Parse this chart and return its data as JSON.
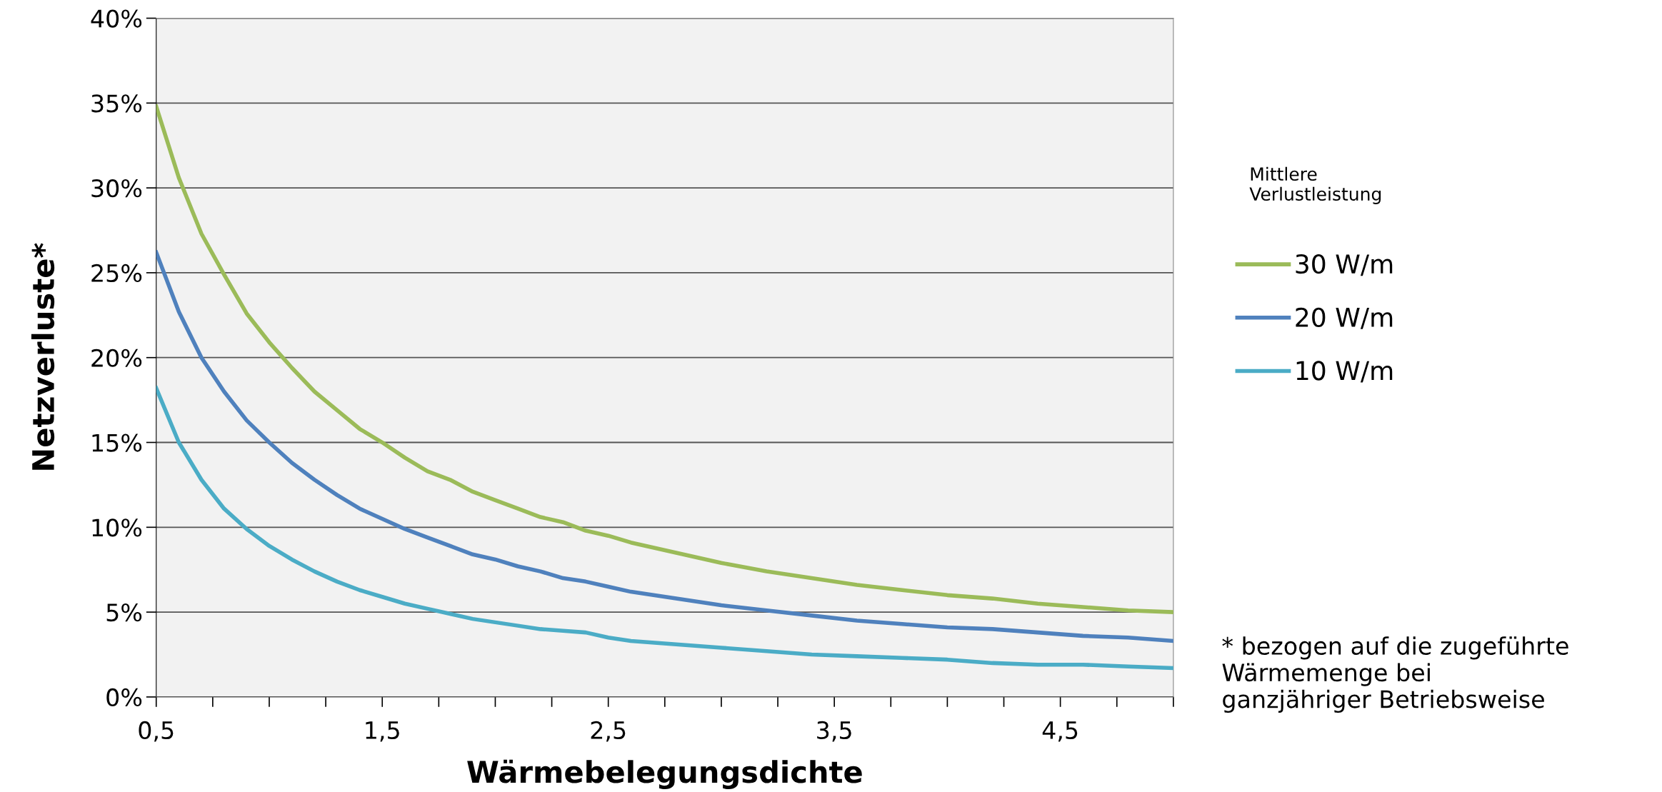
{
  "chart_data": {
    "type": "line",
    "xlabel": "Wärmebelegungsdichte",
    "ylabel": "Netzverluste*",
    "legend_title": "Mittlere\nVerlustleistung",
    "annotations": [
      "* bezogen auf die zugeführte\nWärmemenge bei\nganzjähriger Betriebsweise"
    ],
    "x": [
      0.5,
      0.6,
      0.7,
      0.8,
      0.9,
      1.0,
      1.1,
      1.2,
      1.3,
      1.4,
      1.5,
      1.6,
      1.7,
      1.8,
      1.9,
      2.0,
      2.1,
      2.2,
      2.3,
      2.4,
      2.5,
      2.6,
      2.8,
      3.0,
      3.2,
      3.4,
      3.6,
      3.8,
      4.0,
      4.2,
      4.4,
      4.6,
      4.8,
      5.0
    ],
    "series": [
      {
        "name": "30 W/m",
        "color": "#9bbb59",
        "values": [
          34.8,
          30.6,
          27.3,
          24.9,
          22.6,
          20.9,
          19.4,
          18.0,
          16.9,
          15.8,
          15.0,
          14.1,
          13.3,
          12.8,
          12.1,
          11.6,
          11.1,
          10.6,
          10.3,
          9.8,
          9.5,
          9.1,
          8.5,
          7.9,
          7.4,
          7.0,
          6.6,
          6.3,
          6.0,
          5.8,
          5.5,
          5.3,
          5.1,
          5.0
        ]
      },
      {
        "name": "20 W/m",
        "color": "#4f81bd",
        "values": [
          26.2,
          22.7,
          20.0,
          18.0,
          16.3,
          15.0,
          13.8,
          12.8,
          11.9,
          11.1,
          10.5,
          9.9,
          9.4,
          8.9,
          8.4,
          8.1,
          7.7,
          7.4,
          7.0,
          6.8,
          6.5,
          6.2,
          5.8,
          5.4,
          5.1,
          4.8,
          4.5,
          4.3,
          4.1,
          4.0,
          3.8,
          3.6,
          3.5,
          3.3
        ]
      },
      {
        "name": "10 W/m",
        "color": "#4bacc6",
        "values": [
          18.2,
          15.0,
          12.8,
          11.1,
          9.9,
          8.9,
          8.1,
          7.4,
          6.8,
          6.3,
          5.9,
          5.5,
          5.2,
          4.9,
          4.6,
          4.4,
          4.2,
          4.0,
          3.9,
          3.8,
          3.5,
          3.3,
          3.1,
          2.9,
          2.7,
          2.5,
          2.4,
          2.3,
          2.2,
          2.0,
          1.9,
          1.9,
          1.8,
          1.7
        ]
      }
    ],
    "xlim": [
      0.5,
      5.0
    ],
    "xticks": [
      {
        "value": 0.5,
        "label": "0,5"
      },
      {
        "value": 0.75,
        "label": null
      },
      {
        "value": 1.0,
        "label": null
      },
      {
        "value": 1.25,
        "label": null
      },
      {
        "value": 1.5,
        "label": "1,5"
      },
      {
        "value": 1.75,
        "label": null
      },
      {
        "value": 2.0,
        "label": null
      },
      {
        "value": 2.25,
        "label": null
      },
      {
        "value": 2.5,
        "label": "2,5"
      },
      {
        "value": 2.75,
        "label": null
      },
      {
        "value": 3.0,
        "label": null
      },
      {
        "value": 3.25,
        "label": null
      },
      {
        "value": 3.5,
        "label": "3,5"
      },
      {
        "value": 3.75,
        "label": null
      },
      {
        "value": 4.0,
        "label": null
      },
      {
        "value": 4.25,
        "label": null
      },
      {
        "value": 4.5,
        "label": "4,5"
      },
      {
        "value": 4.75,
        "label": null
      },
      {
        "value": 5.0,
        "label": null
      }
    ],
    "ylim": [
      0,
      40
    ],
    "yticks": [
      {
        "value": 0,
        "label": "0%"
      },
      {
        "value": 5,
        "label": "5%"
      },
      {
        "value": 10,
        "label": "10%"
      },
      {
        "value": 15,
        "label": "15%"
      },
      {
        "value": 20,
        "label": "20%"
      },
      {
        "value": 25,
        "label": "25%"
      },
      {
        "value": 30,
        "label": "30%"
      },
      {
        "value": 35,
        "label": "35%"
      },
      {
        "value": 40,
        "label": "40%"
      }
    ],
    "grid": "y",
    "legend": "right",
    "marker": "none",
    "line_style": "solid"
  }
}
